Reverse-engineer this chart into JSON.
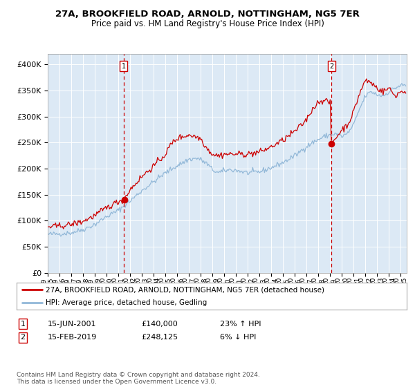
{
  "title": "27A, BROOKFIELD ROAD, ARNOLD, NOTTINGHAM, NG5 7ER",
  "subtitle": "Price paid vs. HM Land Registry's House Price Index (HPI)",
  "fig_bg_color": "#ffffff",
  "plot_bg_color": "#dce9f5",
  "ylim": [
    0,
    420000
  ],
  "yticks": [
    0,
    50000,
    100000,
    150000,
    200000,
    250000,
    300000,
    350000,
    400000
  ],
  "sale1_date": 2001.46,
  "sale1_price": 140000,
  "sale1_label": "1",
  "sale2_date": 2019.12,
  "sale2_price": 248125,
  "sale2_label": "2",
  "hpi_color": "#92b8d8",
  "price_color": "#cc0000",
  "dot_color": "#cc0000",
  "annotation_box_color": "#cc0000",
  "legend_label_red": "27A, BROOKFIELD ROAD, ARNOLD, NOTTINGHAM, NG5 7ER (detached house)",
  "legend_label_blue": "HPI: Average price, detached house, Gedling",
  "table_row1": [
    "1",
    "15-JUN-2001",
    "£140,000",
    "23% ↑ HPI"
  ],
  "table_row2": [
    "2",
    "15-FEB-2019",
    "£248,125",
    "6% ↓ HPI"
  ],
  "footer": "Contains HM Land Registry data © Crown copyright and database right 2024.\nThis data is licensed under the Open Government Licence v3.0.",
  "xmin": 1995.0,
  "xmax": 2025.5
}
